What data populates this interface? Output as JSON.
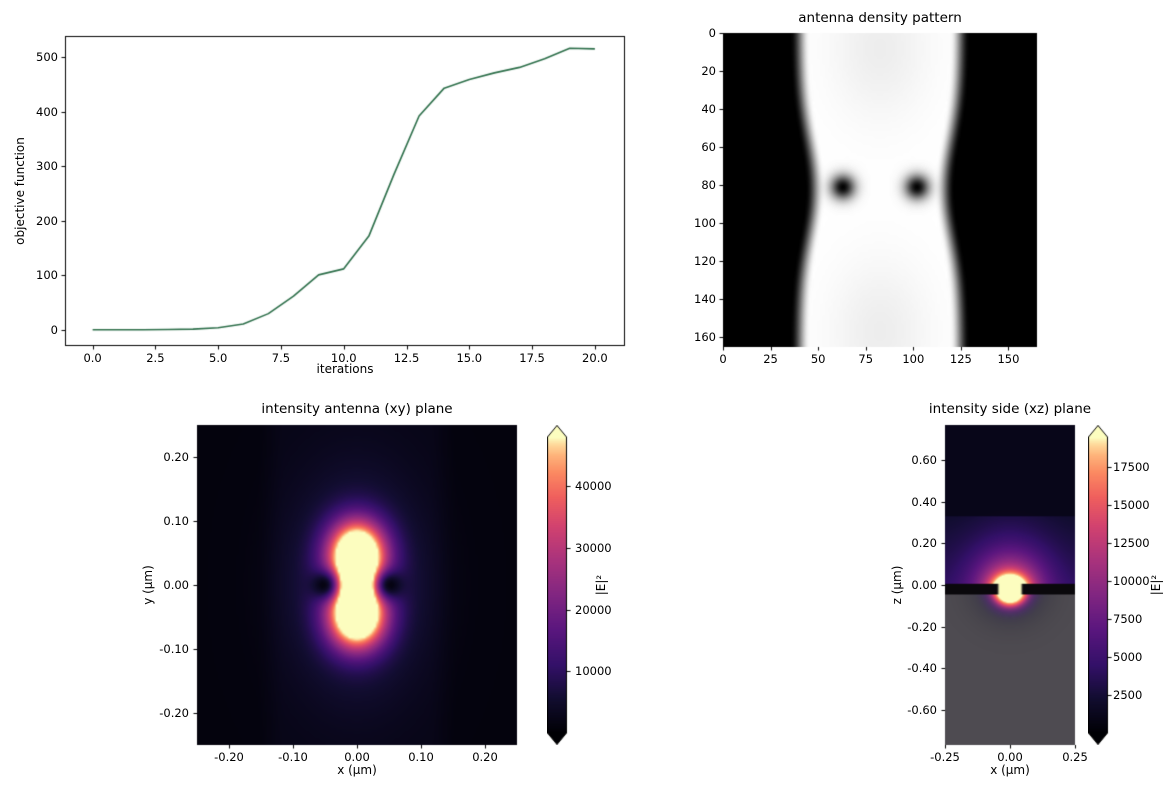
{
  "colormaps": {
    "magma": [
      [
        0,
        "#000004"
      ],
      [
        0.12,
        "#120d31"
      ],
      [
        0.23,
        "#331068"
      ],
      [
        0.35,
        "#5a167e"
      ],
      [
        0.47,
        "#822681"
      ],
      [
        0.59,
        "#ab337c"
      ],
      [
        0.7,
        "#d2426f"
      ],
      [
        0.8,
        "#f0605d"
      ],
      [
        0.88,
        "#fb8961"
      ],
      [
        0.94,
        "#feb47b"
      ],
      [
        0.975,
        "#fed89a"
      ],
      [
        1,
        "#fcfdbf"
      ]
    ]
  },
  "chart_data": [
    {
      "id": "objective",
      "type": "line",
      "title": "",
      "xlabel": "iterations",
      "ylabel": "objective function",
      "line_color": "#2c6e49",
      "x": [
        0,
        1,
        2,
        3,
        4,
        5,
        6,
        7,
        8,
        9,
        10,
        11,
        12,
        13,
        14,
        15,
        16,
        17,
        18,
        19,
        20
      ],
      "y": [
        0.4,
        0.45,
        0.6,
        0.9,
        1.6,
        4,
        11,
        30,
        62,
        101,
        112,
        172,
        285,
        392,
        443,
        459,
        471,
        481,
        497,
        516,
        515
      ],
      "xlim": [
        -1.1,
        21.2
      ],
      "ylim": [
        -29.3,
        538.5
      ],
      "xticks": {
        "values": [
          0,
          2.5,
          5,
          7.5,
          10,
          12.5,
          15,
          17.5,
          20
        ],
        "labels": [
          "0.0",
          "2.5",
          "5.0",
          "7.5",
          "10.0",
          "12.5",
          "15.0",
          "17.5",
          "20.0"
        ]
      },
      "yticks": {
        "values": [
          0,
          100,
          200,
          300,
          400,
          500
        ],
        "labels": [
          "0",
          "100",
          "200",
          "300",
          "400",
          "500"
        ]
      }
    },
    {
      "id": "density",
      "type": "heatmap",
      "title": "antenna density pattern",
      "colormap": "grayscale",
      "size": 165,
      "xticks": {
        "values": [
          0,
          25,
          50,
          75,
          100,
          125,
          150
        ],
        "labels": [
          "0",
          "25",
          "50",
          "75",
          "100",
          "125",
          "150"
        ]
      },
      "yticks": {
        "values": [
          0,
          20,
          40,
          60,
          80,
          100,
          120,
          140,
          160
        ],
        "labels": [
          "0",
          "20",
          "40",
          "60",
          "80",
          "100",
          "120",
          "140",
          "160"
        ]
      },
      "features": {
        "band_center": 82.5,
        "band_halfwidth": 42,
        "waist_depth": 8,
        "waist_y": 82,
        "waist_sigma": 26,
        "edge_softness": 5,
        "holes": [
          {
            "x": 63,
            "y": 81,
            "sigma": 4.5
          },
          {
            "x": 102,
            "y": 81,
            "sigma": 4.5
          }
        ]
      }
    },
    {
      "id": "xy",
      "type": "heatmap",
      "title": "intensity antenna (xy) plane",
      "xlabel": "x (µm)",
      "ylabel": "y (µm)",
      "colormap": "magma",
      "extent": [
        -0.25,
        0.25,
        -0.25,
        0.25
      ],
      "xticks": {
        "values": [
          -0.2,
          -0.1,
          0,
          0.1,
          0.2
        ],
        "labels": [
          "-0.20",
          "-0.10",
          "0.00",
          "0.10",
          "0.20"
        ]
      },
      "yticks": {
        "values": [
          0.2,
          0.1,
          0,
          -0.1,
          -0.2
        ],
        "labels": [
          "0.20",
          "0.10",
          "0.00",
          "-0.10",
          "-0.20"
        ]
      },
      "colorbar": {
        "label": "|E|²",
        "vmax": 48000,
        "extend": "both",
        "ticks": {
          "values": [
            10000,
            20000,
            30000,
            40000
          ],
          "labels": [
            "10000",
            "20000",
            "30000",
            "40000"
          ]
        }
      },
      "features": {
        "outside_level": 0.025,
        "band": {
          "halfwidth": 0.135,
          "softness": 0.05,
          "level": 0.05
        },
        "halo": {
          "amp": 0.22,
          "x_sigma": 0.065,
          "y_sigma": 0.105
        },
        "lobes": {
          "amp": 1.3,
          "x_sigma": 0.03,
          "y_offset": 0.048,
          "y_sigma": 0.035
        },
        "bridge": {
          "amp": 0.55,
          "x_sigma": 0.02,
          "y_sigma": 0.035
        },
        "dark_spots": [
          {
            "x": 0.052,
            "y": 0,
            "sigma": 0.016,
            "depth": 0.92
          },
          {
            "x": -0.052,
            "y": 0,
            "sigma": 0.016,
            "depth": 0.92
          }
        ]
      }
    },
    {
      "id": "xz",
      "type": "heatmap",
      "title": "intensity side (xz) plane",
      "xlabel": "x (µm)",
      "ylabel": "z (µm)",
      "colormap": "magma",
      "extent": [
        -0.25,
        0.25,
        -0.77,
        0.77
      ],
      "xticks": {
        "values": [
          -0.25,
          0,
          0.25
        ],
        "labels": [
          "-0.25",
          "0.00",
          "0.25"
        ]
      },
      "yticks": {
        "values": [
          0.6,
          0.4,
          0.2,
          0,
          -0.2,
          -0.4,
          -0.6
        ],
        "labels": [
          "0.60",
          "0.40",
          "0.20",
          "0.00",
          "-0.20",
          "-0.40",
          "-0.60"
        ]
      },
      "colorbar": {
        "label": "|E|²",
        "vmax": 19500,
        "extend": "both",
        "ticks": {
          "values": [
            2500,
            5000,
            7500,
            10000,
            12500,
            15000,
            17500
          ],
          "labels": [
            "2500",
            "5000",
            "7500",
            "10000",
            "12500",
            "15000",
            "17500"
          ]
        }
      },
      "features": {
        "upper_dark_level": 0.055,
        "haze": {
          "z_top": 0.33,
          "base": 0.1,
          "grad": 0.17,
          "x_sigma": 0.13,
          "x_floor": 0.5
        },
        "blob": {
          "amp": 1.25,
          "x_sigma": 0.045,
          "z_center": -0.03,
          "z_sigma": 0.05,
          "halo_amp": 0.4,
          "halo_x_sigma": 0.09,
          "halo_z_sigma": 0.11
        },
        "film": {
          "z_top": 0.005,
          "z_bottom": -0.048,
          "gap_halfwidth": 0.045,
          "edge_soft": 0.012
        },
        "substrate_color": "#4e4b51"
      }
    }
  ]
}
